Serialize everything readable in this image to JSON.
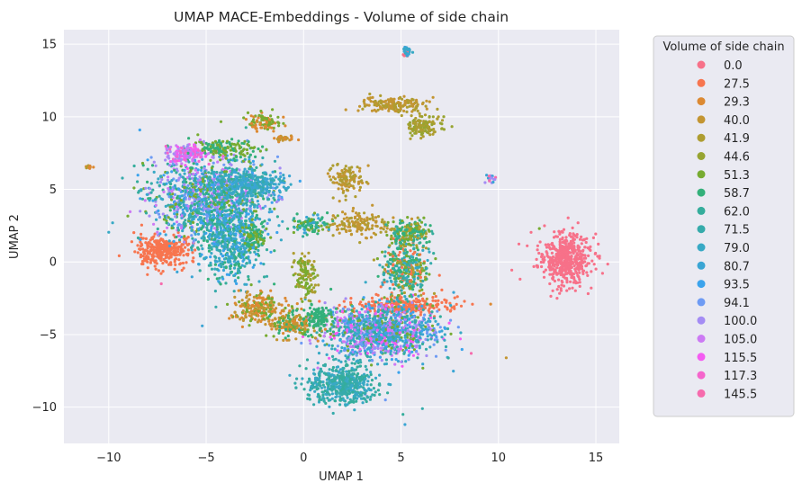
{
  "chart_data": {
    "type": "scatter",
    "title": "UMAP MACE-Embeddings - Volume of side chain",
    "xlabel": "UMAP 1",
    "ylabel": "UMAP 2",
    "xlim": [
      -12.3,
      16.2
    ],
    "ylim": [
      -12.5,
      16.0
    ],
    "xticks": [
      -10,
      -5,
      0,
      5,
      10,
      15
    ],
    "yticks": [
      -10,
      -5,
      0,
      5,
      10,
      15
    ],
    "xtick_labels": [
      "−10",
      "−5",
      "0",
      "5",
      "10",
      "15"
    ],
    "ytick_labels": [
      "−10",
      "−5",
      "0",
      "5",
      "10",
      "15"
    ],
    "grid": true,
    "background": "#eaeaf2",
    "legend": {
      "title": "Volume of side chain",
      "placement": "outside-right",
      "entries": [
        {
          "label": "0.0",
          "color": "#f77189"
        },
        {
          "label": "27.5",
          "color": "#f7754f"
        },
        {
          "label": "29.3",
          "color": "#dc8932"
        },
        {
          "label": "40.0",
          "color": "#c39532"
        },
        {
          "label": "41.9",
          "color": "#ae9d31"
        },
        {
          "label": "44.6",
          "color": "#97a431"
        },
        {
          "label": "51.3",
          "color": "#77ab31"
        },
        {
          "label": "58.7",
          "color": "#33b07a"
        },
        {
          "label": "62.0",
          "color": "#35ad9c"
        },
        {
          "label": "71.5",
          "color": "#36abab"
        },
        {
          "label": "79.0",
          "color": "#38a9c5"
        },
        {
          "label": "80.7",
          "color": "#3aa5d4"
        },
        {
          "label": "93.5",
          "color": "#3ba3ec"
        },
        {
          "label": "94.1",
          "color": "#6e9bf4"
        },
        {
          "label": "100.0",
          "color": "#a48cf4"
        },
        {
          "label": "105.0",
          "color": "#cc7af4"
        },
        {
          "label": "115.5",
          "color": "#f45cf2"
        },
        {
          "label": "117.3",
          "color": "#f565cc"
        },
        {
          "label": "145.5",
          "color": "#f66bad"
        }
      ]
    },
    "clusters": [
      {
        "cx": 13.4,
        "cy": 0.2,
        "sx": 0.75,
        "sy": 1.0,
        "n": 500,
        "colors": [
          "0.0"
        ]
      },
      {
        "cx": 5.3,
        "cy": 14.5,
        "sx": 0.12,
        "sy": 0.25,
        "n": 30,
        "colors": [
          "0.0",
          "79.0",
          "80.7"
        ]
      },
      {
        "cx": -7.2,
        "cy": 0.8,
        "sx": 0.8,
        "sy": 0.55,
        "n": 320,
        "colors": [
          "27.5"
        ]
      },
      {
        "cx": 5.3,
        "cy": -3.0,
        "sx": 1.5,
        "sy": 0.35,
        "n": 240,
        "colors": [
          "27.5"
        ]
      },
      {
        "cx": 4.6,
        "cy": 10.8,
        "sx": 0.9,
        "sy": 0.3,
        "n": 150,
        "colors": [
          "41.9",
          "40.0"
        ]
      },
      {
        "cx": 6.2,
        "cy": 9.3,
        "sx": 0.5,
        "sy": 0.45,
        "n": 120,
        "colors": [
          "41.9",
          "44.6"
        ]
      },
      {
        "cx": -2.0,
        "cy": 9.6,
        "sx": 0.45,
        "sy": 0.35,
        "n": 100,
        "colors": [
          "29.3",
          "51.3"
        ]
      },
      {
        "cx": -1.0,
        "cy": 8.5,
        "sx": 0.3,
        "sy": 0.12,
        "n": 30,
        "colors": [
          "29.3",
          "40.0"
        ]
      },
      {
        "cx": 2.2,
        "cy": 5.7,
        "sx": 0.5,
        "sy": 0.6,
        "n": 110,
        "colors": [
          "40.0",
          "41.9"
        ]
      },
      {
        "cx": 2.8,
        "cy": 2.6,
        "sx": 0.8,
        "sy": 0.5,
        "n": 130,
        "colors": [
          "40.0",
          "41.9"
        ]
      },
      {
        "cx": -4.8,
        "cy": 4.5,
        "sx": 1.7,
        "sy": 1.6,
        "n": 1300,
        "colors": [
          "79.0",
          "80.7",
          "93.5",
          "94.1",
          "100.0",
          "62.0",
          "71.5",
          "51.3",
          "58.7",
          "105.0"
        ]
      },
      {
        "cx": -3.8,
        "cy": 1.2,
        "sx": 0.9,
        "sy": 1.4,
        "n": 500,
        "colors": [
          "79.0",
          "80.7",
          "62.0",
          "71.5",
          "93.5",
          "58.7"
        ]
      },
      {
        "cx": -6.0,
        "cy": 7.5,
        "sx": 0.7,
        "sy": 0.35,
        "n": 160,
        "colors": [
          "115.5",
          "117.3",
          "105.0",
          "100.0"
        ]
      },
      {
        "cx": -4.0,
        "cy": 7.8,
        "sx": 0.8,
        "sy": 0.3,
        "n": 120,
        "colors": [
          "51.3",
          "58.7"
        ]
      },
      {
        "cx": -2.6,
        "cy": 5.3,
        "sx": 0.9,
        "sy": 0.55,
        "n": 260,
        "colors": [
          "79.0",
          "80.7",
          "71.5"
        ]
      },
      {
        "cx": -2.5,
        "cy": 1.8,
        "sx": 0.35,
        "sy": 0.5,
        "n": 80,
        "colors": [
          "58.7",
          "51.3"
        ]
      },
      {
        "cx": 4.0,
        "cy": -4.8,
        "sx": 1.6,
        "sy": 1.0,
        "n": 1200,
        "colors": [
          "79.0",
          "80.7",
          "93.5",
          "94.1",
          "100.0",
          "105.0",
          "115.5",
          "62.0",
          "71.5",
          "51.3"
        ]
      },
      {
        "cx": 2.0,
        "cy": -8.4,
        "sx": 1.0,
        "sy": 0.75,
        "n": 500,
        "colors": [
          "71.5",
          "79.0",
          "62.0"
        ]
      },
      {
        "cx": 5.2,
        "cy": -0.5,
        "sx": 0.7,
        "sy": 1.1,
        "n": 380,
        "colors": [
          "62.0",
          "71.5",
          "79.0",
          "51.3",
          "58.7",
          "41.9",
          "27.5"
        ]
      },
      {
        "cx": 5.5,
        "cy": 2.0,
        "sx": 0.6,
        "sy": 0.5,
        "n": 180,
        "colors": [
          "51.3",
          "58.7",
          "62.0",
          "41.9"
        ]
      },
      {
        "cx": -2.2,
        "cy": -3.2,
        "sx": 0.7,
        "sy": 0.6,
        "n": 220,
        "colors": [
          "29.3",
          "40.0",
          "51.3"
        ]
      },
      {
        "cx": -0.6,
        "cy": -4.3,
        "sx": 0.7,
        "sy": 0.5,
        "n": 180,
        "colors": [
          "29.3",
          "51.3",
          "58.7",
          "40.0"
        ]
      },
      {
        "cx": 0.8,
        "cy": -3.8,
        "sx": 0.35,
        "sy": 0.5,
        "n": 110,
        "colors": [
          "58.7"
        ]
      },
      {
        "cx": 0.1,
        "cy": -1.0,
        "sx": 0.3,
        "sy": 0.9,
        "n": 120,
        "colors": [
          "51.3",
          "44.6",
          "41.9"
        ]
      },
      {
        "cx": 0.3,
        "cy": 2.6,
        "sx": 0.5,
        "sy": 0.4,
        "n": 90,
        "colors": [
          "62.0",
          "58.7",
          "80.7",
          "51.3"
        ]
      },
      {
        "cx": -11.0,
        "cy": 6.5,
        "sx": 0.1,
        "sy": 0.08,
        "n": 12,
        "colors": [
          "41.9",
          "29.3"
        ]
      },
      {
        "cx": 9.6,
        "cy": 5.7,
        "sx": 0.15,
        "sy": 0.2,
        "n": 16,
        "colors": [
          "80.7",
          "145.5",
          "100.0"
        ]
      },
      {
        "cx": -1.2,
        "cy": 4.4,
        "sx": 0.08,
        "sy": 0.08,
        "n": 8,
        "colors": [
          "93.5",
          "100.0"
        ]
      }
    ],
    "outliers": [
      {
        "x": -9.8,
        "y": 2.7,
        "c": "79.0"
      },
      {
        "x": -7.3,
        "y": -1.5,
        "c": "145.5"
      },
      {
        "x": -5.2,
        "y": -4.4,
        "c": "80.7"
      },
      {
        "x": -4.5,
        "y": -3.1,
        "c": "71.5"
      },
      {
        "x": 5.2,
        "y": -11.2,
        "c": "80.7"
      },
      {
        "x": 6.1,
        "y": -10.1,
        "c": "71.5"
      },
      {
        "x": 4.2,
        "y": -9.5,
        "c": "94.1"
      },
      {
        "x": 7.7,
        "y": -2.1,
        "c": "80.7"
      },
      {
        "x": 9.6,
        "y": -2.9,
        "c": "29.3"
      },
      {
        "x": 8.6,
        "y": -6.3,
        "c": "145.5"
      },
      {
        "x": 10.4,
        "y": -6.6,
        "c": "40.0"
      },
      {
        "x": 12.1,
        "y": 2.3,
        "c": "51.3"
      },
      {
        "x": 5.1,
        "y": -10.5,
        "c": "62.0"
      }
    ]
  }
}
